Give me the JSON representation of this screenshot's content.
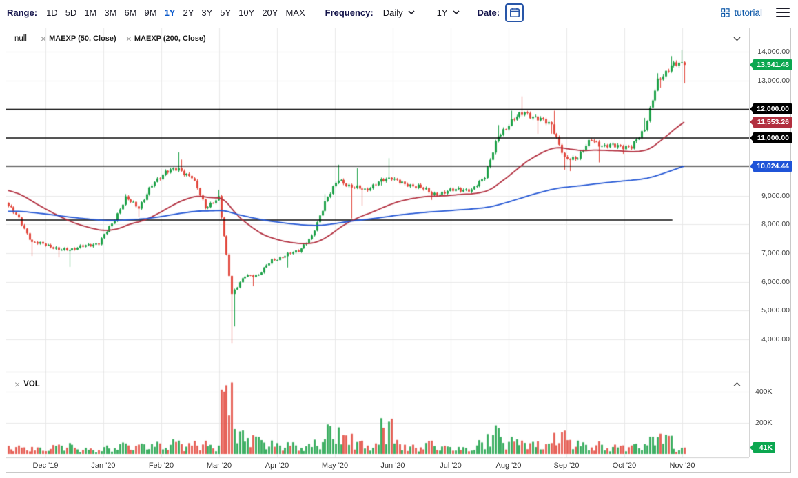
{
  "toolbar": {
    "range_label": "Range:",
    "ranges": [
      "1D",
      "5D",
      "1M",
      "3M",
      "6M",
      "9M",
      "1Y",
      "2Y",
      "3Y",
      "5Y",
      "10Y",
      "20Y",
      "MAX"
    ],
    "active_range": "1Y",
    "frequency_label": "Frequency:",
    "frequency_value": "Daily",
    "period_value": "1Y",
    "date_label": "Date:",
    "tutorial_label": "tutorial"
  },
  "legend": {
    "series": "null",
    "studies": [
      "MAEXP (50, Close)",
      "MAEXP (200, Close)"
    ],
    "vol": "VOL"
  },
  "axis": {
    "y_ticks": [
      {
        "label": "14,000.00",
        "value": 14000
      },
      {
        "label": "13,000.00",
        "value": 13000
      },
      {
        "label": "12,000.00",
        "value": 12000
      },
      {
        "label": "11,000.00",
        "value": 11000
      },
      {
        "label": "10,000.00",
        "value": 10000
      },
      {
        "label": "9,000.00",
        "value": 9000
      },
      {
        "label": "8,000.00",
        "value": 8000
      },
      {
        "label": "7,000.00",
        "value": 7000
      },
      {
        "label": "6,000.00",
        "value": 6000
      },
      {
        "label": "5,000.00",
        "value": 5000
      },
      {
        "label": "4,000.00",
        "value": 4000
      }
    ],
    "vol_ticks": [
      {
        "label": "400K",
        "value": 400
      },
      {
        "label": "200K",
        "value": 200
      }
    ]
  },
  "badges": [
    {
      "id": "last-price",
      "pane": "main",
      "text": "13,541.48",
      "value": 13541.48,
      "bg": "#0ca750"
    },
    {
      "id": "hline-12000",
      "pane": "main",
      "text": "12,000.00",
      "value": 12000,
      "bg": "#000000"
    },
    {
      "id": "ma50-value",
      "pane": "main",
      "text": "11,553.26",
      "value": 11553.26,
      "bg": "#b22f3f"
    },
    {
      "id": "hline-11000",
      "pane": "main",
      "text": "11,000.00",
      "value": 11000,
      "bg": "#000000"
    },
    {
      "id": "ma200-value",
      "pane": "main",
      "text": "10,024.44",
      "value": 10024.44,
      "bg": "#1f54d8"
    },
    {
      "id": "last-volume",
      "pane": "vol",
      "text": "41K",
      "value": 41,
      "bg": "#0ca750"
    }
  ],
  "chart_data": {
    "type": "candlestick",
    "symbol": "null",
    "frequency": "Daily",
    "range": "1Y",
    "months": [
      "Dec '19",
      "Jan '20",
      "Feb '20",
      "Mar '20",
      "Apr '20",
      "May '20",
      "Jun '20",
      "Jul '20",
      "Aug '20",
      "Sep '20",
      "Oct '20",
      "Nov '20"
    ],
    "start_month": -0.67,
    "y_axis": {
      "min": 4000,
      "max": 14000,
      "tick": 1000
    },
    "last_price": 13541.48,
    "last_volume_k": 41,
    "up_color": "#1fa24a",
    "down_color": "#e24a3f",
    "studies": [
      {
        "name": "MAEXP (50, Close)",
        "color": "#b22f3f",
        "seed": 9200,
        "last": 11553.26
      },
      {
        "name": "MAEXP (200, Close)",
        "color": "#2356d4",
        "seed": 8450,
        "last": 10024.44
      }
    ],
    "hlines": [
      {
        "value": 12000,
        "to_month": 12.2
      },
      {
        "value": 11000,
        "to_month": 12.2
      },
      {
        "value": 10024.44,
        "to_month": 12.2
      },
      {
        "value": 8150,
        "to_month": 10.83
      }
    ],
    "weekly": {
      "dates": [
        "2019-11-11",
        "2019-11-18",
        "2019-11-25",
        "2019-12-02",
        "2019-12-09",
        "2019-12-16",
        "2019-12-23",
        "2019-12-30",
        "2020-01-06",
        "2020-01-13",
        "2020-01-20",
        "2020-01-27",
        "2020-02-03",
        "2020-02-10",
        "2020-02-17",
        "2020-02-24",
        "2020-03-02",
        "2020-03-09",
        "2020-03-16",
        "2020-03-23",
        "2020-03-30",
        "2020-04-06",
        "2020-04-13",
        "2020-04-20",
        "2020-04-27",
        "2020-05-04",
        "2020-05-11",
        "2020-05-18",
        "2020-05-25",
        "2020-06-01",
        "2020-06-08",
        "2020-06-15",
        "2020-06-22",
        "2020-06-29",
        "2020-07-06",
        "2020-07-13",
        "2020-07-20",
        "2020-07-27",
        "2020-08-03",
        "2020-08-10",
        "2020-08-17",
        "2020-08-24",
        "2020-08-31",
        "2020-09-07",
        "2020-09-14",
        "2020-09-21",
        "2020-09-28",
        "2020-10-05",
        "2020-10-12",
        "2020-10-19",
        "2020-10-26",
        "2020-11-02"
      ],
      "closes": [
        8750,
        8200,
        7350,
        7320,
        7100,
        7150,
        7250,
        7350,
        8020,
        8900,
        8600,
        9350,
        9850,
        9900,
        9650,
        8600,
        8900,
        5600,
        6200,
        6250,
        6750,
        6900,
        7100,
        7550,
        8800,
        9550,
        9300,
        9200,
        9450,
        9650,
        9350,
        9350,
        9050,
        9100,
        9250,
        9150,
        9700,
        11050,
        11600,
        11900,
        11650,
        11500,
        10250,
        10350,
        10950,
        10700,
        10750,
        10650,
        11350,
        12950,
        13550,
        13541.48
      ],
      "highs": [
        null,
        null,
        null,
        null,
        null,
        null,
        null,
        null,
        null,
        9050,
        null,
        null,
        null,
        10500,
        10250,
        null,
        9200,
        8050,
        null,
        null,
        null,
        null,
        null,
        null,
        9050,
        10070,
        null,
        9950,
        null,
        10300,
        null,
        null,
        null,
        null,
        null,
        null,
        null,
        11450,
        11950,
        12450,
        null,
        null,
        11950,
        null,
        null,
        null,
        null,
        null,
        11700,
        13250,
        13850,
        14060
      ],
      "lows": [
        null,
        null,
        6900,
        null,
        6850,
        6520,
        null,
        null,
        null,
        null,
        8250,
        null,
        null,
        null,
        null,
        8520,
        null,
        3850,
        4450,
        5850,
        null,
        null,
        6500,
        null,
        null,
        8800,
        8200,
        8650,
        null,
        9350,
        null,
        null,
        8850,
        null,
        null,
        null,
        null,
        null,
        null,
        null,
        11150,
        11150,
        9900,
        9850,
        null,
        10150,
        null,
        10450,
        null,
        null,
        12750,
        12900
      ],
      "volumes_k": [
        50,
        55,
        45,
        45,
        60,
        70,
        40,
        35,
        55,
        75,
        60,
        70,
        80,
        95,
        70,
        85,
        60,
        460,
        160,
        120,
        90,
        70,
        75,
        65,
        95,
        190,
        130,
        85,
        70,
        230,
        90,
        60,
        85,
        55,
        50,
        45,
        90,
        185,
        110,
        95,
        80,
        70,
        150,
        90,
        75,
        80,
        60,
        55,
        70,
        120,
        130,
        41
      ]
    }
  }
}
